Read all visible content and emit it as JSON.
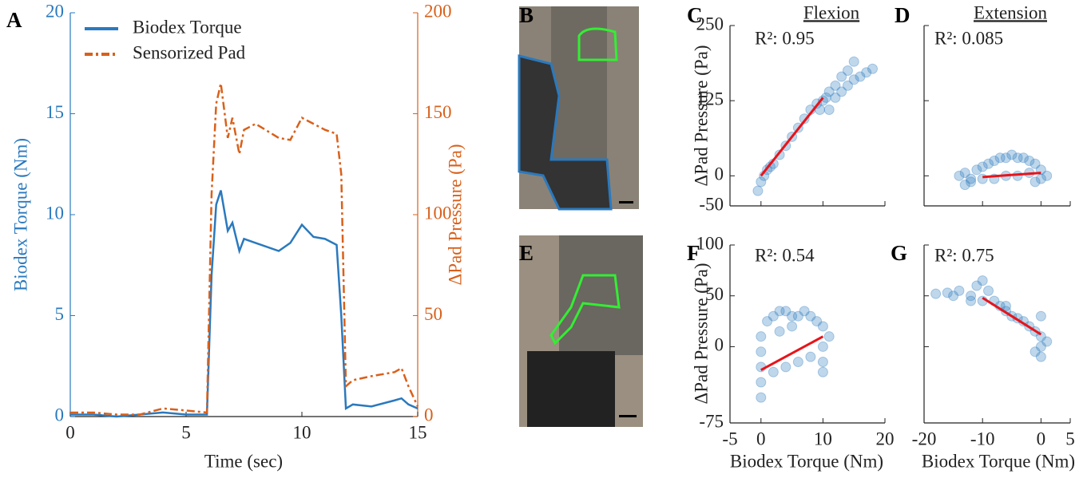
{
  "chart_data": [
    {
      "type": "line",
      "label": "A",
      "xlabel": "Time (sec)",
      "ylabel": "Biodex Torque (Nm)",
      "y2label": "ΔPad Pressure (Pa)",
      "x": [
        0,
        1,
        2,
        3,
        4,
        5,
        5.9,
        6.1,
        6.3,
        6.5,
        6.8,
        7,
        7.3,
        7.5,
        8,
        9,
        9.5,
        10,
        10.5,
        11,
        11.5,
        11.7,
        11.9,
        12.2,
        13,
        14,
        14.3,
        14.6,
        15
      ],
      "xlim": [
        0,
        15
      ],
      "xticks": [
        0,
        5,
        10,
        15
      ],
      "ylim": [
        0,
        20
      ],
      "yticks": [
        0,
        5,
        10,
        15,
        20
      ],
      "y2lim": [
        0,
        200
      ],
      "y2ticks": [
        0,
        50,
        100,
        150,
        200
      ],
      "legend": "upper left",
      "series": [
        {
          "name": "Biodex Torque",
          "color": "#2a79be",
          "values": [
            0.1,
            0.1,
            0,
            0.1,
            0.2,
            0.1,
            0.1,
            7,
            10.5,
            11.2,
            9.2,
            9.6,
            8.2,
            8.8,
            8.6,
            8.2,
            8.6,
            9.5,
            8.9,
            8.8,
            8.5,
            5,
            0.4,
            0.6,
            0.5,
            0.8,
            0.9,
            0.6,
            0.4
          ]
        },
        {
          "name": "Sensorized Pad",
          "color": "#d9601a",
          "axis": "y2",
          "dash": "dashdot",
          "values": [
            2,
            2,
            1,
            1,
            4,
            3,
            2,
            110,
            155,
            165,
            138,
            148,
            130,
            142,
            145,
            138,
            137,
            148,
            145,
            142,
            140,
            120,
            15,
            18,
            20,
            22,
            24,
            15,
            5
          ]
        }
      ]
    },
    {
      "type": "scatter",
      "label": "C",
      "title": "Flexion",
      "annotation": "R²: 0.95",
      "ylabel": "ΔPad Pressure (Pa)",
      "color": "#2a79be",
      "fit_color": "#e8141a",
      "x": [
        -0.5,
        0,
        0.5,
        1,
        1.5,
        2,
        3,
        4,
        5,
        6,
        7,
        8,
        9,
        9.5,
        10,
        10.5,
        11,
        12,
        13,
        14,
        15,
        11,
        12,
        13,
        14,
        15,
        16,
        17,
        18
      ],
      "y": [
        -25,
        -10,
        0,
        10,
        15,
        20,
        35,
        50,
        65,
        80,
        95,
        110,
        120,
        110,
        125,
        130,
        140,
        150,
        165,
        175,
        190,
        110,
        130,
        140,
        150,
        160,
        165,
        172,
        178
      ],
      "fit": {
        "x": [
          0,
          10
        ],
        "y": [
          0,
          130
        ]
      },
      "xlim": [
        -5,
        20
      ],
      "xticks": [
        -5,
        0,
        10,
        20
      ],
      "xtick_labels": false,
      "ylim": [
        -50,
        250
      ],
      "yticks": [
        -50,
        0,
        125,
        250
      ]
    },
    {
      "type": "scatter",
      "label": "D",
      "title": "Extension",
      "annotation": "R²: 0.085",
      "color": "#2a79be",
      "fit_color": "#e8141a",
      "x": [
        -14,
        -13,
        -12,
        -11,
        -10,
        -9,
        -8,
        -7,
        -6,
        -5,
        -4,
        -3,
        -2,
        -1,
        0,
        1,
        -12,
        -10,
        -8,
        -6,
        -4,
        -2,
        0,
        -13,
        -1
      ],
      "y": [
        0,
        5,
        -5,
        10,
        15,
        20,
        25,
        30,
        30,
        35,
        30,
        30,
        25,
        20,
        10,
        0,
        -10,
        -5,
        -5,
        0,
        0,
        5,
        -5,
        -15,
        -10
      ],
      "fit": {
        "x": [
          -10,
          0
        ],
        "y": [
          -2,
          5
        ]
      },
      "xlim": [
        -20,
        5
      ],
      "xticks": [
        -20,
        -10,
        0,
        5
      ],
      "xtick_labels": false,
      "ylim": [
        -50,
        250
      ],
      "yticks": [
        -50,
        0,
        125,
        250
      ],
      "ytick_labels": false
    },
    {
      "type": "scatter",
      "label": "F",
      "annotation": "R²: 0.54",
      "ylabel": "ΔPad Pressure (Pa)",
      "xlabel": "Biodex Torque (Nm)",
      "color": "#2a79be",
      "fit_color": "#e8141a",
      "x": [
        0,
        0,
        0,
        0,
        0,
        1,
        2,
        3,
        4,
        5,
        6,
        7,
        8,
        9,
        10,
        10,
        10,
        10,
        11,
        2,
        4,
        6,
        8,
        3,
        5
      ],
      "y": [
        -50,
        -35,
        -20,
        -5,
        10,
        25,
        30,
        35,
        35,
        30,
        30,
        35,
        30,
        25,
        20,
        0,
        -15,
        -25,
        10,
        -25,
        -20,
        -15,
        -10,
        15,
        20
      ],
      "fit": {
        "x": [
          0,
          10
        ],
        "y": [
          -23,
          10
        ]
      },
      "xlim": [
        -5,
        20
      ],
      "xticks": [
        -5,
        0,
        10,
        20
      ],
      "ylim": [
        -75,
        100
      ],
      "yticks": [
        -75,
        0,
        50,
        100
      ]
    },
    {
      "type": "scatter",
      "label": "G",
      "annotation": "R²: 0.75",
      "xlabel": "Biodex Torque (Nm)",
      "color": "#2a79be",
      "fit_color": "#e8141a",
      "x": [
        -18,
        -16,
        -14,
        -12,
        -11,
        -10,
        -9,
        -10,
        -8,
        -7,
        -6,
        -5,
        -4,
        -3,
        -2,
        -1,
        0,
        0,
        0,
        0,
        1,
        -1,
        -12,
        -15,
        -6
      ],
      "y": [
        52,
        53,
        55,
        50,
        60,
        65,
        55,
        45,
        45,
        40,
        35,
        30,
        28,
        25,
        20,
        15,
        30,
        10,
        0,
        -10,
        5,
        -5,
        45,
        50,
        40
      ],
      "fit": {
        "x": [
          -10,
          0
        ],
        "y": [
          48,
          12
        ]
      },
      "xlim": [
        -20,
        5
      ],
      "xticks": [
        -20,
        -10,
        0,
        5
      ],
      "ylim": [
        -75,
        100
      ],
      "yticks": [
        -75,
        0,
        50,
        100
      ],
      "ytick_labels": false
    }
  ],
  "photos": [
    {
      "label": "B"
    },
    {
      "label": "E"
    }
  ]
}
